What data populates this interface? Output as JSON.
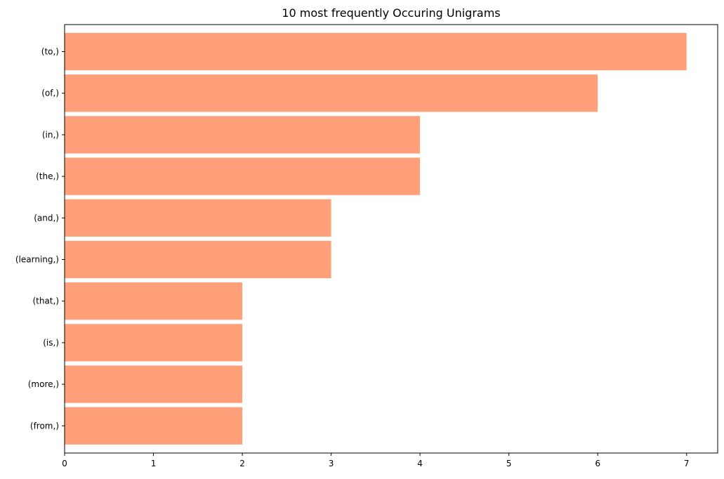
{
  "chart_data": {
    "type": "bar",
    "orientation": "horizontal",
    "title": "10 most frequently Occuring Unigrams",
    "xlabel": "",
    "ylabel": "",
    "categories": [
      "(to,)",
      "(of,)",
      "(in,)",
      "(the,)",
      "(and,)",
      "(learning,)",
      "(that,)",
      "(is,)",
      "(more,)",
      "(from,)"
    ],
    "values": [
      7,
      6,
      4,
      4,
      3,
      3,
      2,
      2,
      2,
      2
    ],
    "xlim": [
      0,
      7.35
    ],
    "xticks": [
      "0",
      "1",
      "2",
      "3",
      "4",
      "5",
      "6",
      "7"
    ],
    "grid": false,
    "legend": "none",
    "bar_color": "#ffa07a"
  }
}
